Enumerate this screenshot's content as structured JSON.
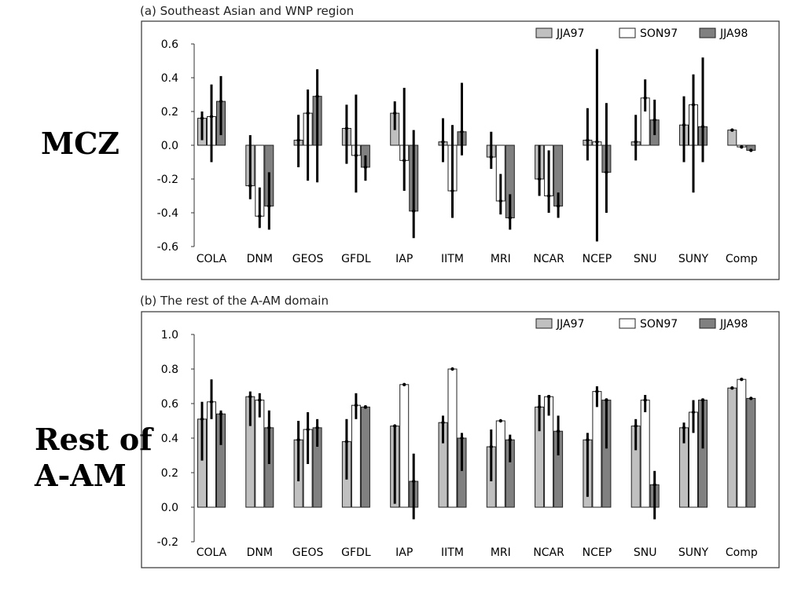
{
  "colors": {
    "jja97": "#c0c0c0",
    "son97": "#ffffff",
    "jja98": "#808080",
    "errorbar": "#000000",
    "border": "#333333"
  },
  "row_labels": {
    "top": "MCZ",
    "bottom_line1": "Rest of",
    "bottom_line2": "A-AM"
  },
  "chart_data": [
    {
      "type": "bar",
      "title": "(a) Southeast Asian and WNP region",
      "categories": [
        "COLA",
        "DNM",
        "GEOS",
        "GFDL",
        "IAP",
        "IITM",
        "MRI",
        "NCAR",
        "NCEP",
        "SNU",
        "SUNY",
        "Comp"
      ],
      "ylim": [
        -0.6,
        0.6
      ],
      "yticks": [
        0.6,
        0.4,
        0.2,
        0.0,
        -0.2,
        -0.4,
        -0.6
      ],
      "ytick_labels": [
        "0.6",
        "0.4",
        "0.2",
        "0.0",
        "-0.2",
        "-0.4",
        "-0.6"
      ],
      "legend": [
        "JJA97",
        "SON97",
        "JJA98"
      ],
      "legend_position": "top-right",
      "grid": false,
      "series": [
        {
          "name": "JJA97",
          "color": "#c0c0c0",
          "values": [
            0.16,
            -0.24,
            0.03,
            0.1,
            0.19,
            0.02,
            -0.07,
            -0.2,
            0.03,
            0.02,
            0.12,
            0.09
          ],
          "errors": [
            [
              0.03,
              0.2
            ],
            [
              -0.32,
              0.06
            ],
            [
              -0.13,
              0.18
            ],
            [
              -0.11,
              0.24
            ],
            [
              0.09,
              0.26
            ],
            [
              -0.1,
              0.16
            ],
            [
              -0.14,
              0.08
            ],
            [
              -0.3,
              0.0
            ],
            [
              -0.09,
              0.22
            ],
            [
              -0.09,
              0.18
            ],
            [
              -0.1,
              0.29
            ],
            null
          ]
        },
        {
          "name": "SON97",
          "color": "#ffffff",
          "values": [
            0.17,
            -0.42,
            0.19,
            -0.06,
            -0.09,
            -0.27,
            -0.33,
            -0.3,
            0.02,
            0.28,
            0.24,
            -0.01
          ],
          "errors": [
            [
              -0.1,
              0.36
            ],
            [
              -0.49,
              -0.25
            ],
            [
              -0.21,
              0.33
            ],
            [
              -0.28,
              0.3
            ],
            [
              -0.27,
              0.34
            ],
            [
              -0.43,
              0.12
            ],
            [
              -0.41,
              -0.17
            ],
            [
              -0.4,
              -0.03
            ],
            [
              -0.57,
              0.57
            ],
            [
              0.2,
              0.39
            ],
            [
              -0.28,
              0.42
            ],
            null
          ]
        },
        {
          "name": "JJA98",
          "color": "#808080",
          "values": [
            0.26,
            -0.36,
            0.29,
            -0.13,
            -0.39,
            0.08,
            -0.43,
            -0.36,
            -0.16,
            0.15,
            0.11,
            -0.03
          ],
          "errors": [
            [
              0.06,
              0.41
            ],
            [
              -0.5,
              -0.16
            ],
            [
              -0.22,
              0.45
            ],
            [
              -0.21,
              -0.06
            ],
            [
              -0.55,
              0.09
            ],
            [
              -0.06,
              0.37
            ],
            [
              -0.5,
              -0.29
            ],
            [
              -0.43,
              -0.28
            ],
            [
              -0.4,
              0.25
            ],
            [
              0.06,
              0.27
            ],
            [
              -0.1,
              0.52
            ],
            null
          ]
        }
      ]
    },
    {
      "type": "bar",
      "title": "(b) The rest of the A-AM domain",
      "categories": [
        "COLA",
        "DNM",
        "GEOS",
        "GFDL",
        "IAP",
        "IITM",
        "MRI",
        "NCAR",
        "NCEP",
        "SNU",
        "SUNY",
        "Comp"
      ],
      "ylim": [
        -0.2,
        1.0
      ],
      "yticks": [
        1.0,
        0.8,
        0.6,
        0.4,
        0.2,
        0.0,
        -0.2
      ],
      "ytick_labels": [
        "1.0",
        "0.8",
        "0.6",
        "0.4",
        "0.2",
        "0.0",
        "-0.2"
      ],
      "legend": [
        "JJA97",
        "SON97",
        "JJA98"
      ],
      "legend_position": "top-right",
      "grid": false,
      "series": [
        {
          "name": "JJA97",
          "color": "#c0c0c0",
          "values": [
            0.51,
            0.64,
            0.39,
            0.38,
            0.47,
            0.49,
            0.35,
            0.58,
            0.39,
            0.47,
            0.46,
            0.69
          ],
          "errors": [
            [
              0.27,
              0.61
            ],
            [
              0.47,
              0.67
            ],
            [
              0.15,
              0.5
            ],
            [
              0.16,
              0.51
            ],
            [
              0.02,
              0.47
            ],
            [
              0.37,
              0.53
            ],
            [
              0.15,
              0.45
            ],
            [
              0.44,
              0.65
            ],
            [
              0.06,
              0.43
            ],
            [
              0.33,
              0.51
            ],
            [
              0.37,
              0.49
            ],
            null
          ]
        },
        {
          "name": "SON97",
          "color": "#ffffff",
          "values": [
            0.61,
            0.62,
            0.45,
            0.59,
            0.71,
            0.8,
            0.5,
            0.64,
            0.67,
            0.62,
            0.55,
            0.74
          ],
          "errors": [
            [
              0.51,
              0.74
            ],
            [
              0.52,
              0.66
            ],
            [
              0.25,
              0.55
            ],
            [
              0.51,
              0.66
            ],
            [
              0.71,
              0.71
            ],
            [
              0.8,
              0.8
            ],
            [
              0.5,
              0.5
            ],
            [
              0.53,
              0.65
            ],
            [
              0.58,
              0.7
            ],
            [
              0.55,
              0.65
            ],
            [
              0.43,
              0.62
            ],
            null
          ]
        },
        {
          "name": "JJA98",
          "color": "#808080",
          "values": [
            0.54,
            0.46,
            0.46,
            0.58,
            0.15,
            0.4,
            0.39,
            0.44,
            0.62,
            0.13,
            0.62,
            0.63
          ],
          "errors": [
            [
              0.36,
              0.56
            ],
            [
              0.25,
              0.56
            ],
            [
              0.35,
              0.51
            ],
            [
              0.57,
              0.59
            ],
            [
              -0.07,
              0.31
            ],
            [
              0.21,
              0.43
            ],
            [
              0.26,
              0.42
            ],
            [
              0.3,
              0.53
            ],
            [
              0.34,
              0.63
            ],
            [
              -0.07,
              0.21
            ],
            [
              0.34,
              0.63
            ],
            null
          ]
        }
      ]
    }
  ]
}
